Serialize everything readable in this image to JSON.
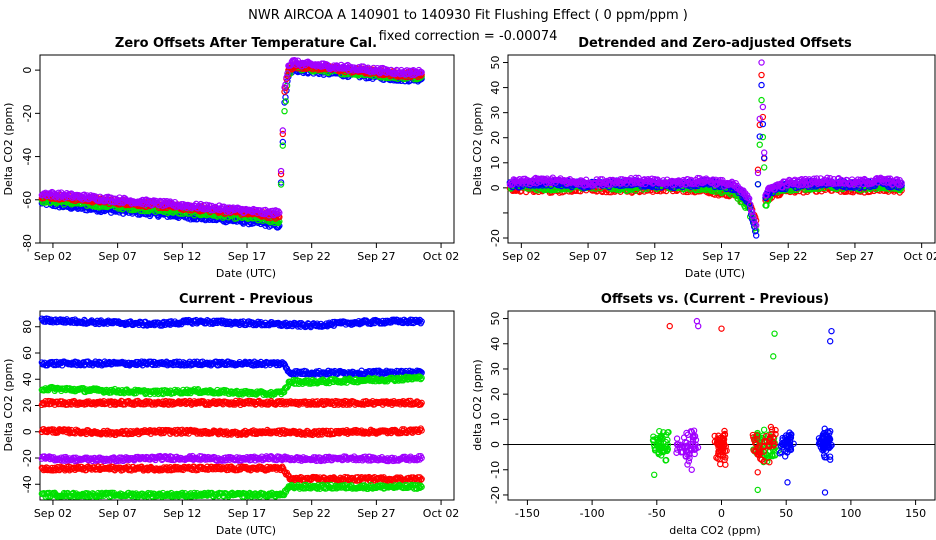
{
  "figure": {
    "title": "NWR   AIRCOA A   140901 to 140930   Fit Flushing Effect ( 0 ppm/ppm )",
    "subtitle": "fixed correction = -0.00074"
  },
  "colors": {
    "red": "#ff0000",
    "green": "#00e000",
    "blue": "#0000ff",
    "purple": "#a000ff",
    "black": "#000000"
  },
  "chart_data": [
    {
      "type": "scatter",
      "id": "p1",
      "title": "Zero Offsets After Temperature Cal.",
      "xlabel": "Date (UTC)",
      "ylabel": "Delta CO2 (ppm)",
      "xlim": [
        0,
        32
      ],
      "ylim": [
        -80,
        7
      ],
      "xticks": [
        1,
        6,
        11,
        16,
        21,
        26,
        31
      ],
      "xtick_labels": [
        "Sep 02",
        "Sep 07",
        "Sep 12",
        "Sep 17",
        "Sep 22",
        "Sep 27",
        "Oct 02"
      ],
      "yticks": [
        -80,
        -60,
        -40,
        -20,
        0
      ],
      "series": [
        {
          "name": "blue",
          "color": "blue",
          "x": [
            0,
            2,
            4,
            6,
            8,
            10,
            12,
            14,
            16,
            17.5,
            18.5,
            18.9,
            19.2,
            19.6,
            20,
            22,
            24,
            26,
            28,
            29.5
          ],
          "y": [
            -61,
            -63,
            -64,
            -65,
            -66,
            -67,
            -68,
            -69,
            -70,
            -71,
            -72,
            -15,
            -3,
            1,
            0,
            -1,
            -2,
            -3,
            -4,
            -4
          ]
        },
        {
          "name": "green",
          "color": "green",
          "x": [
            0,
            2,
            4,
            6,
            8,
            10,
            12,
            14,
            16,
            17.5,
            18.5,
            18.9,
            19.2,
            19.6,
            20,
            22,
            24,
            26,
            28,
            29.5
          ],
          "y": [
            -60,
            -61,
            -62,
            -63,
            -64,
            -65,
            -66,
            -67,
            -68,
            -69,
            -70,
            -19,
            -2,
            2,
            1,
            0,
            -1,
            -2,
            -3,
            -3
          ]
        },
        {
          "name": "red",
          "color": "red",
          "x": [
            0,
            2,
            4,
            6,
            8,
            10,
            12,
            14,
            16,
            17.5,
            18.5,
            18.9,
            19.2,
            19.6,
            20,
            22,
            24,
            26,
            28,
            29.5
          ],
          "y": [
            -58,
            -59,
            -60,
            -61,
            -62,
            -63,
            -64,
            -65,
            -66,
            -67,
            -68,
            -10,
            0,
            2,
            2,
            1,
            0,
            -1,
            -2,
            -2
          ]
        },
        {
          "name": "purple",
          "color": "purple",
          "x": [
            0,
            2,
            4,
            6,
            8,
            10,
            12,
            14,
            16,
            17.5,
            18.5,
            18.9,
            19.2,
            19.6,
            20,
            22,
            24,
            26,
            28,
            29.5
          ],
          "y": [
            -57,
            -58,
            -59,
            -60,
            -61,
            -62,
            -63,
            -64,
            -65,
            -66,
            -66,
            -8,
            2,
            4,
            3,
            2,
            1,
            0,
            -1,
            -1
          ]
        }
      ]
    },
    {
      "type": "scatter",
      "id": "p2",
      "title": "Detrended and Zero-adjusted Offsets",
      "xlabel": "Date (UTC)",
      "ylabel": "Delta CO2 (ppm)",
      "xlim": [
        0,
        32
      ],
      "ylim": [
        -22,
        53
      ],
      "xticks": [
        1,
        6,
        11,
        16,
        21,
        26,
        31
      ],
      "xtick_labels": [
        "Sep 02",
        "Sep 07",
        "Sep 12",
        "Sep 17",
        "Sep 22",
        "Sep 27",
        "Oct 02"
      ],
      "yticks": [
        -20,
        -10,
        0,
        10,
        20,
        30,
        40,
        50
      ],
      "ytick_labels": [
        "-20",
        "",
        "0",
        "10",
        "20",
        "30",
        "40",
        "50"
      ],
      "series": [
        {
          "name": "red",
          "color": "red",
          "x": [
            0,
            3,
            6,
            9,
            12,
            15,
            17,
            18,
            18.6,
            19,
            19.3,
            19.7,
            21,
            24,
            26,
            28,
            29.5
          ],
          "y": [
            0,
            -1,
            0,
            -1,
            0,
            -1,
            -3,
            -6,
            -13,
            45,
            -5,
            -3,
            -1,
            0,
            -1,
            0,
            -1
          ]
        },
        {
          "name": "green",
          "color": "green",
          "x": [
            0,
            3,
            6,
            9,
            12,
            15,
            17,
            18,
            18.6,
            19,
            19.3,
            19.7,
            21,
            24,
            26,
            28,
            29.5
          ],
          "y": [
            1,
            0,
            1,
            0,
            1,
            0,
            -2,
            -8,
            -17,
            35,
            -7,
            -2,
            0,
            1,
            0,
            1,
            0
          ]
        },
        {
          "name": "blue",
          "color": "blue",
          "x": [
            0,
            3,
            6,
            9,
            12,
            15,
            17,
            18,
            18.6,
            19,
            19.3,
            19.7,
            21,
            24,
            26,
            28,
            29.5
          ],
          "y": [
            1,
            2,
            1,
            2,
            1,
            2,
            0,
            -5,
            -19,
            41,
            -4,
            -1,
            1,
            2,
            1,
            2,
            1
          ]
        },
        {
          "name": "purple",
          "color": "purple",
          "x": [
            0,
            3,
            6,
            9,
            12,
            15,
            17,
            18,
            18.6,
            19,
            19.3,
            19.7,
            21,
            24,
            26,
            28,
            29.5
          ],
          "y": [
            2,
            3,
            2,
            3,
            2,
            3,
            1,
            -4,
            -15,
            50,
            -3,
            0,
            2,
            3,
            2,
            3,
            2
          ]
        }
      ]
    },
    {
      "type": "scatter",
      "id": "p3",
      "title": "Current - Previous",
      "xlabel": "Date (UTC)",
      "ylabel": "Delta CO2 (ppm)",
      "xlim": [
        0,
        32
      ],
      "ylim": [
        -52,
        92
      ],
      "xticks": [
        1,
        6,
        11,
        16,
        21,
        26,
        31
      ],
      "xtick_labels": [
        "Sep 02",
        "Sep 07",
        "Sep 12",
        "Sep 17",
        "Sep 22",
        "Sep 27",
        "Oct 02"
      ],
      "yticks": [
        -40,
        -20,
        0,
        20,
        40,
        60,
        80
      ],
      "series": [
        {
          "name": "blue-high",
          "color": "blue",
          "x": [
            0,
            3,
            6,
            9,
            12,
            15,
            18,
            21,
            24,
            27,
            29.5
          ],
          "y": [
            85,
            84,
            83,
            82,
            84,
            83,
            82,
            81,
            83,
            84,
            84
          ]
        },
        {
          "name": "blue-low",
          "color": "blue",
          "x": [
            0,
            3,
            6,
            9,
            12,
            15,
            18,
            18.8,
            19.3,
            21,
            24,
            27,
            29.5
          ],
          "y": [
            52,
            52,
            52,
            52,
            52,
            52,
            52,
            52,
            45,
            45,
            45,
            45,
            45
          ]
        },
        {
          "name": "green-high",
          "color": "green",
          "x": [
            0,
            3,
            6,
            9,
            12,
            15,
            18,
            18.8,
            19.3,
            21,
            24,
            27,
            29.5
          ],
          "y": [
            33,
            32,
            31,
            30,
            31,
            30,
            29,
            30,
            38,
            38,
            39,
            40,
            41
          ]
        },
        {
          "name": "red-high",
          "color": "red",
          "x": [
            0,
            3,
            6,
            9,
            12,
            15,
            18,
            18.8,
            19.3,
            21,
            24,
            27,
            29.5
          ],
          "y": [
            22,
            22,
            22,
            22,
            22,
            22,
            22,
            22,
            22,
            22,
            22,
            22,
            22
          ]
        },
        {
          "name": "red-mid",
          "color": "red",
          "x": [
            0,
            3,
            6,
            9,
            12,
            15,
            18,
            21,
            24,
            27,
            29.5
          ],
          "y": [
            1,
            0,
            -1,
            0,
            0,
            -1,
            0,
            -1,
            0,
            0,
            1
          ]
        },
        {
          "name": "purple",
          "color": "purple",
          "x": [
            0,
            3,
            6,
            9,
            12,
            15,
            18,
            21,
            24,
            27,
            29.5
          ],
          "y": [
            -20,
            -21,
            -21,
            -20,
            -20,
            -21,
            -20,
            -21,
            -20,
            -21,
            -20
          ]
        },
        {
          "name": "red-low",
          "color": "red",
          "x": [
            0,
            3,
            6,
            9,
            12,
            15,
            18,
            18.8,
            19.3,
            21,
            24,
            27,
            29.5
          ],
          "y": [
            -28,
            -28,
            -28,
            -28,
            -28,
            -28,
            -28,
            -28,
            -36,
            -36,
            -36,
            -36,
            -36
          ]
        },
        {
          "name": "green-low",
          "color": "green",
          "x": [
            0,
            3,
            6,
            9,
            12,
            15,
            18,
            18.8,
            19.3,
            21,
            24,
            27,
            29.5
          ],
          "y": [
            -48,
            -48,
            -48,
            -48,
            -48,
            -48,
            -48,
            -48,
            -42,
            -42,
            -42,
            -42,
            -42
          ]
        }
      ]
    },
    {
      "type": "scatter",
      "id": "p4",
      "title": "Offsets vs. (Current - Previous)",
      "xlabel": "delta CO2 (ppm)",
      "ylabel": "delta CO2 (ppm)",
      "xlim": [
        -165,
        165
      ],
      "ylim": [
        -22,
        53
      ],
      "xticks": [
        -150,
        -100,
        -50,
        0,
        50,
        100,
        150
      ],
      "xtick_labels": [
        "-150",
        "-100",
        "-50",
        "0",
        "50",
        "100",
        "150"
      ],
      "yticks": [
        -20,
        -10,
        0,
        10,
        20,
        30,
        40,
        50
      ],
      "ytick_labels": [
        "-20",
        "-10",
        "0",
        "10",
        "20",
        "30",
        "40",
        "50"
      ],
      "hline": 0,
      "series": [
        {
          "name": "green",
          "color": "green",
          "x": [
            -50,
            -49,
            -48,
            -45,
            -43,
            -52,
            27,
            30,
            32,
            35,
            38,
            40,
            41,
            42,
            28
          ],
          "y": [
            0,
            2,
            -1,
            -3,
            1,
            -12,
            0,
            2,
            -1,
            -4,
            3,
            35,
            44,
            -1,
            -18
          ]
        },
        {
          "name": "purple",
          "color": "purple",
          "x": [
            -32,
            -28,
            -25,
            -22,
            -20,
            -19,
            -18,
            -23
          ],
          "y": [
            -1,
            1,
            -4,
            2,
            0,
            49,
            47,
            -10
          ]
        },
        {
          "name": "red",
          "color": "red",
          "x": [
            -3,
            -1,
            0,
            1,
            2,
            3,
            0,
            27,
            30,
            28,
            35,
            37,
            40,
            -40
          ],
          "y": [
            0,
            -2,
            1,
            -4,
            2,
            -8,
            46,
            0,
            -3,
            -11,
            1,
            -7,
            3,
            47
          ]
        },
        {
          "name": "blue",
          "color": "blue",
          "x": [
            48,
            51,
            52,
            53,
            78,
            79,
            80,
            81,
            82,
            83,
            84,
            85,
            51,
            80,
            84
          ],
          "y": [
            0,
            2,
            -1,
            1,
            0,
            -2,
            1,
            3,
            -1,
            2,
            -6,
            45,
            -15,
            -19,
            41
          ]
        }
      ]
    }
  ]
}
